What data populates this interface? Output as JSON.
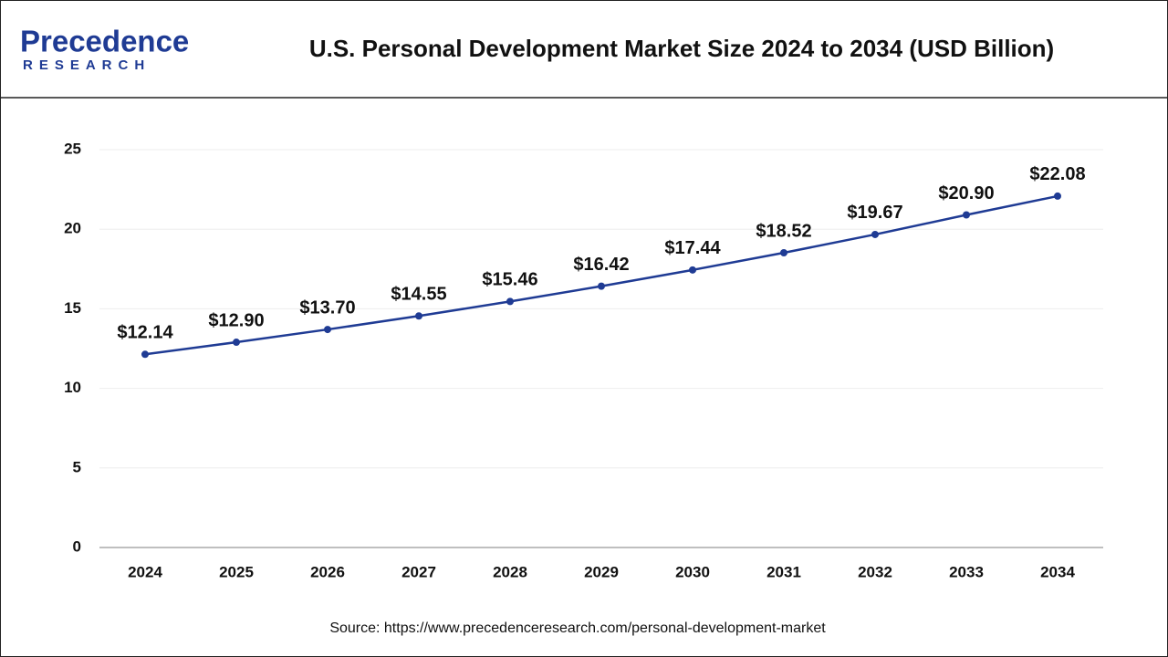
{
  "logo": {
    "name": "Precedence",
    "sub": "RESEARCH"
  },
  "chart_data": {
    "type": "line",
    "title": "U.S. Personal Development Market Size 2024 to 2034 (USD Billion)",
    "categories": [
      "2024",
      "2025",
      "2026",
      "2027",
      "2028",
      "2029",
      "2030",
      "2031",
      "2032",
      "2033",
      "2034"
    ],
    "values": [
      12.14,
      12.9,
      13.7,
      14.55,
      15.46,
      16.42,
      17.44,
      18.52,
      19.67,
      20.9,
      22.08
    ],
    "value_labels": [
      "$12.14",
      "$12.90",
      "$13.70",
      "$14.55",
      "$15.46",
      "$16.42",
      "$17.44",
      "$18.52",
      "$19.67",
      "$20.90",
      "$22.08"
    ],
    "color": "#1f3b94",
    "ylim": [
      0,
      25
    ],
    "yticks": [
      0,
      5,
      10,
      15,
      20,
      25
    ],
    "grid": true
  },
  "source": "Source: https://www.precedenceresearch.com/personal-development-market"
}
